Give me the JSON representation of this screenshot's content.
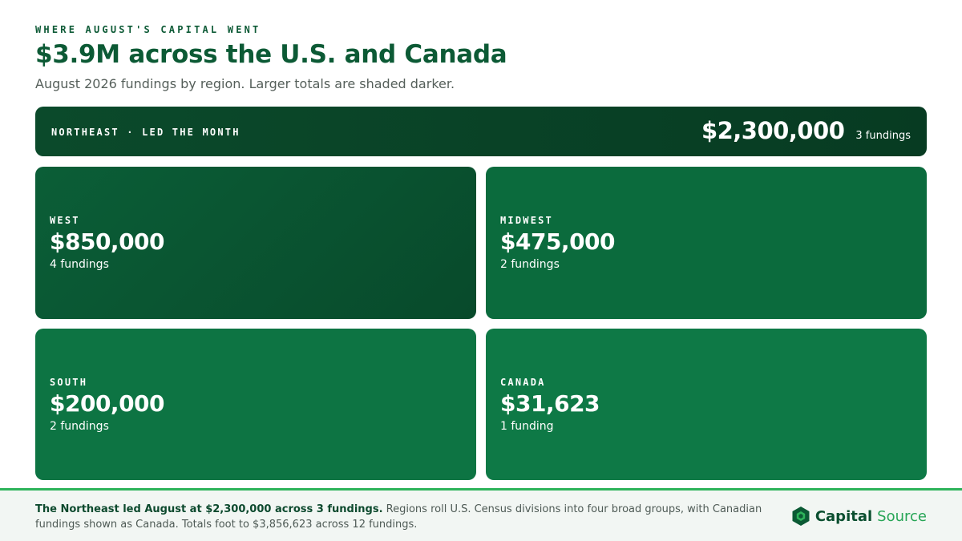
{
  "header": {
    "eyebrow": "WHERE AUGUST'S CAPITAL WENT",
    "title": "$3.9M across the U.S. and Canada",
    "subtitle": "August 2026 fundings by region. Larger totals are shaded darker."
  },
  "lead": {
    "label": "NORTHEAST · LED THE MONTH",
    "amount": "$2,300,000",
    "count": "3 fundings"
  },
  "regions": [
    {
      "label": "WEST",
      "amount": "$850,000",
      "count": "4 fundings"
    },
    {
      "label": "MIDWEST",
      "amount": "$475,000",
      "count": "2 fundings"
    },
    {
      "label": "SOUTH",
      "amount": "$200,000",
      "count": "2 fundings"
    },
    {
      "label": "CANADA",
      "amount": "$31,623",
      "count": "1 funding"
    }
  ],
  "footer": {
    "summary_bold": "The Northeast led August at $2,300,000 across 3 fundings.",
    "summary_rest": " Regions roll U.S. Census divisions into four broad groups, with Canadian fundings shown as Canada. Totals foot to $3,856,623 across 12 fundings."
  },
  "brand": {
    "name_part1": "Capital",
    "name_part2": "Source",
    "logo_icon": "hexagon-logo-icon",
    "colors": {
      "primary": "#0b4f30",
      "accent": "#27a556"
    }
  }
}
